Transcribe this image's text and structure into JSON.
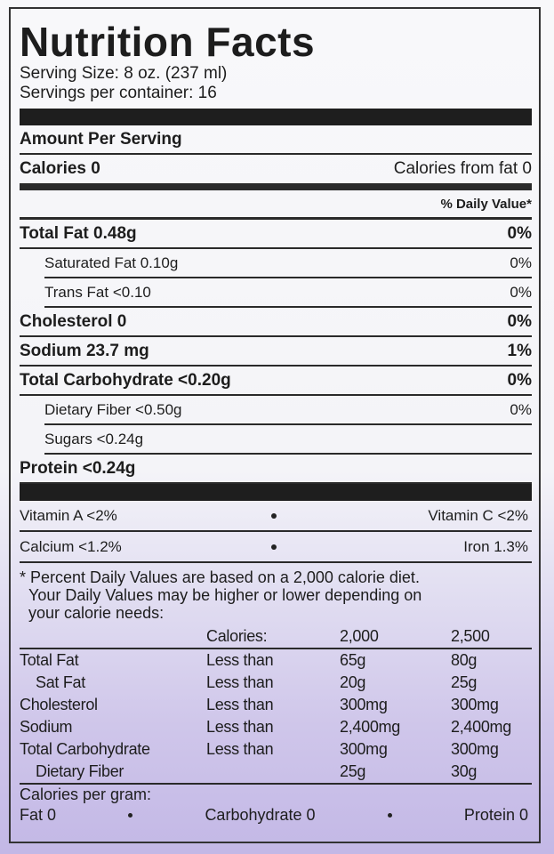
{
  "title": "Nutrition Facts",
  "serving_size": "Serving Size:  8 oz. (237 ml)",
  "servings_per_container": "Servings per container:  16",
  "amount_per_serving": "Amount Per Serving",
  "calories": "Calories  0",
  "calories_from_fat": "Calories from fat  0",
  "daily_value_header": "% Daily Value*",
  "nutrients": [
    {
      "label": "Total Fat 0.48g",
      "dv": "0%",
      "sub": [
        {
          "label": "Saturated Fat 0.10g",
          "dv": "0%"
        },
        {
          "label": "Trans Fat <0.10",
          "dv": "0%"
        }
      ]
    },
    {
      "label": "Cholesterol  0",
      "dv": "0%"
    },
    {
      "label": "Sodium 23.7 mg",
      "dv": "1%"
    },
    {
      "label": "Total Carbohydrate  <0.20g",
      "dv": "0%",
      "sub": [
        {
          "label": "Dietary Fiber  <0.50g",
          "dv": "0%"
        },
        {
          "label": "Sugars  <0.24g"
        }
      ]
    },
    {
      "label": "Protein  <0.24g"
    }
  ],
  "vitamins": [
    [
      "Vitamin A  <2%",
      "Vitamin C  <2%"
    ],
    [
      "Calcium  <1.2%",
      "Iron  1.3%"
    ]
  ],
  "footnote": [
    "* Percent Daily Values are based on a 2,000 calorie diet.",
    "Your Daily Values may be higher or lower depending on",
    "your calorie needs:"
  ],
  "dv_table": {
    "header": [
      "Calories:",
      "2,000",
      "2,500"
    ],
    "rows": [
      {
        "name": "Total Fat",
        "qualifier": "Less than",
        "c2000": "65g",
        "c2500": "80g"
      },
      {
        "name": "Sat Fat",
        "qualifier": "Less than",
        "c2000": "20g",
        "c2500": "25g"
      },
      {
        "name": "Cholesterol",
        "qualifier": "Less than",
        "c2000": "300mg",
        "c2500": "300mg"
      },
      {
        "name": "Sodium",
        "qualifier": "Less than",
        "c2000": "2,400mg",
        "c2500": "2,400mg"
      },
      {
        "name": "Total Carbohydrate",
        "qualifier": "Less than",
        "c2000": "300mg",
        "c2500": "300mg"
      },
      {
        "name": "Dietary Fiber",
        "c2000": "25g",
        "c2500": "30g"
      }
    ]
  },
  "calories_per_gram": {
    "title": "Calories per gram:",
    "items": [
      "Fat 0",
      "Carbohydrate 0",
      "Protein 0"
    ]
  }
}
